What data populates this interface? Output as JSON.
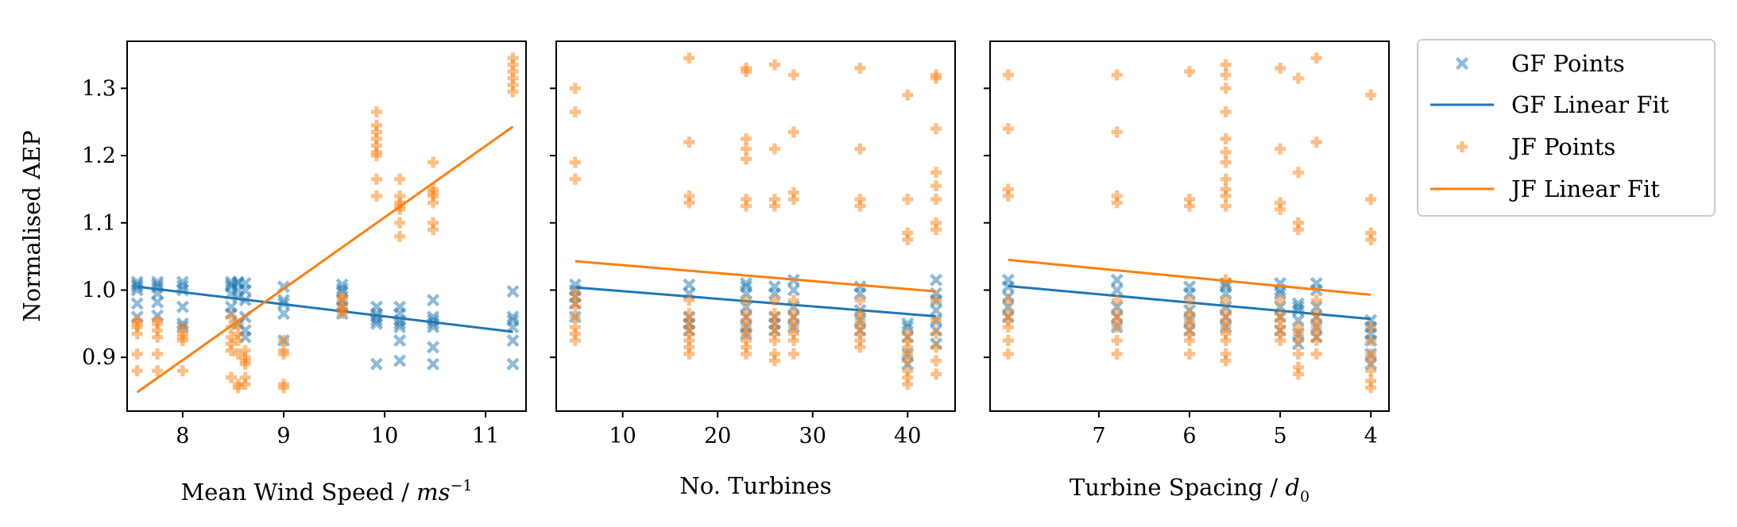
{
  "colors": {
    "gf": "#1f77b4",
    "jf": "#ff7f0e"
  },
  "legend": [
    {
      "label": "GF Points",
      "kind": "points",
      "series": "gf",
      "marker": "x"
    },
    {
      "label": "GF Linear Fit",
      "kind": "line",
      "series": "gf"
    },
    {
      "label": "JF Points",
      "kind": "points",
      "series": "jf",
      "marker": "plus"
    },
    {
      "label": "JF Linear Fit",
      "kind": "line",
      "series": "jf"
    }
  ],
  "chart_data": [
    {
      "type": "scatter",
      "title": "",
      "xlabel": "Mean Wind Speed / ms⁻¹",
      "ylabel": "Normalised AEP",
      "xlim": [
        7.45,
        11.4
      ],
      "ylim": [
        0.82,
        1.37
      ],
      "xticks": [
        8,
        9,
        10,
        11
      ],
      "xtick_labels": [
        "8",
        "9",
        "10",
        "11"
      ],
      "yticks": [
        0.9,
        1.0,
        1.1,
        1.2,
        1.3
      ],
      "ytick_labels": [
        "0.9",
        "1.0",
        "1.1",
        "1.2",
        "1.3"
      ],
      "series": [
        {
          "name": "GF Points",
          "marker": "x",
          "x": [
            7.55,
            7.55,
            7.55,
            7.55,
            7.55,
            7.55,
            7.75,
            7.75,
            7.75,
            7.75,
            7.75,
            7.75,
            8.0,
            8.0,
            8.0,
            8.0,
            8.0,
            8.0,
            8.48,
            8.48,
            8.48,
            8.48,
            8.48,
            8.48,
            8.55,
            8.55,
            8.55,
            8.55,
            8.55,
            8.62,
            8.62,
            8.62,
            8.62,
            8.62,
            8.62,
            9.0,
            9.0,
            9.0,
            9.0,
            9.0,
            9.58,
            9.58,
            9.58,
            9.58,
            9.58,
            9.58,
            9.92,
            9.92,
            9.92,
            9.92,
            9.92,
            9.92,
            10.15,
            10.15,
            10.15,
            10.15,
            10.15,
            10.15,
            10.15,
            10.48,
            10.48,
            10.48,
            10.48,
            10.48,
            10.48,
            10.48,
            11.27,
            11.27,
            11.27,
            11.27,
            11.27,
            11.27
          ],
          "y": [
            1.012,
            1.008,
            1.005,
            1.0,
            0.98,
            0.96,
            1.012,
            1.008,
            1.004,
            0.995,
            0.982,
            0.962,
            1.012,
            1.006,
            1.0,
            0.975,
            0.95,
            0.945,
            1.012,
            1.008,
            1.005,
            0.995,
            0.975,
            0.965,
            1.012,
            1.01,
            1.0,
            0.99,
            0.95,
            1.01,
            1.0,
            0.985,
            0.96,
            0.94,
            0.93,
            1.005,
            0.985,
            0.98,
            0.965,
            0.925,
            1.008,
            1.002,
            0.998,
            0.985,
            0.975,
            0.965,
            0.975,
            0.965,
            0.96,
            0.955,
            0.95,
            0.89,
            0.975,
            0.965,
            0.955,
            0.95,
            0.945,
            0.925,
            0.895,
            0.985,
            0.96,
            0.955,
            0.95,
            0.945,
            0.915,
            0.89,
            0.998,
            0.96,
            0.955,
            0.945,
            0.925,
            0.89
          ]
        },
        {
          "name": "GF Linear Fit",
          "type": "line",
          "x": [
            7.55,
            11.27
          ],
          "y": [
            1.005,
            0.938
          ]
        },
        {
          "name": "JF Points",
          "marker": "plus",
          "x": [
            7.55,
            7.55,
            7.55,
            7.55,
            7.55,
            7.55,
            7.75,
            7.75,
            7.75,
            7.75,
            7.75,
            7.75,
            8.0,
            8.0,
            8.0,
            8.0,
            8.0,
            8.48,
            8.48,
            8.48,
            8.48,
            8.48,
            8.48,
            8.55,
            8.55,
            8.55,
            8.55,
            8.55,
            8.55,
            8.62,
            8.62,
            8.62,
            8.62,
            8.62,
            8.62,
            9.0,
            9.0,
            9.0,
            9.0,
            9.0,
            9.58,
            9.58,
            9.58,
            9.58,
            9.58,
            9.92,
            9.92,
            9.92,
            9.92,
            9.92,
            9.92,
            9.92,
            9.92,
            9.92,
            10.15,
            10.15,
            10.15,
            10.15,
            10.15,
            10.15,
            10.15,
            10.48,
            10.48,
            10.48,
            10.48,
            10.48,
            10.48,
            10.48,
            11.27,
            11.27,
            11.27,
            11.27,
            11.27,
            11.27
          ],
          "y": [
            0.955,
            0.945,
            0.935,
            0.905,
            0.88,
            0.95,
            0.955,
            0.95,
            0.94,
            0.93,
            0.905,
            0.88,
            0.945,
            0.935,
            0.93,
            0.925,
            0.88,
            0.96,
            0.945,
            0.93,
            0.92,
            0.91,
            0.87,
            0.95,
            0.935,
            0.925,
            0.905,
            0.86,
            0.855,
            0.91,
            0.9,
            0.895,
            0.89,
            0.87,
            0.86,
            0.925,
            0.91,
            0.905,
            0.86,
            0.855,
            0.99,
            0.985,
            0.975,
            0.97,
            0.965,
            1.265,
            1.245,
            1.235,
            1.225,
            1.215,
            1.205,
            1.2,
            1.165,
            1.14,
            1.165,
            1.14,
            1.13,
            1.125,
            1.12,
            1.1,
            1.08,
            1.19,
            1.15,
            1.145,
            1.14,
            1.13,
            1.1,
            1.09,
            1.345,
            1.335,
            1.325,
            1.315,
            1.305,
            1.295
          ]
        },
        {
          "name": "JF Linear Fit",
          "type": "line",
          "x": [
            7.55,
            11.27
          ],
          "y": [
            0.848,
            1.243
          ]
        }
      ]
    },
    {
      "type": "scatter",
      "title": "",
      "xlabel": "No. Turbines",
      "ylabel": "",
      "xlim": [
        3.0,
        45.0
      ],
      "ylim": [
        0.82,
        1.37
      ],
      "xticks": [
        10,
        20,
        30,
        40
      ],
      "xtick_labels": [
        "10",
        "20",
        "30",
        "40"
      ],
      "yticks": [
        0.9,
        1.0,
        1.1,
        1.2,
        1.3
      ],
      "ytick_labels": [],
      "series": [
        {
          "name": "GF Points",
          "marker": "x",
          "x": [
            5,
            5,
            5,
            5,
            5,
            17,
            17,
            17,
            17,
            17,
            23,
            23,
            23,
            23,
            23,
            23,
            23,
            26,
            26,
            26,
            26,
            26,
            28,
            28,
            28,
            28,
            28,
            35,
            35,
            35,
            35,
            35,
            40,
            40,
            40,
            40,
            40,
            43,
            43,
            43,
            43,
            43,
            43,
            43
          ],
          "y": [
            1.008,
            1.0,
            0.99,
            0.98,
            0.96,
            1.008,
            0.995,
            0.96,
            0.95,
            0.94,
            1.01,
            1.005,
            0.995,
            0.975,
            0.96,
            0.945,
            0.935,
            1.005,
            0.995,
            0.96,
            0.95,
            0.94,
            1.015,
            1.0,
            0.975,
            0.96,
            0.945,
            1.005,
            0.995,
            0.97,
            0.955,
            0.94,
            0.95,
            0.945,
            0.93,
            0.905,
            0.89,
            1.015,
            0.995,
            0.985,
            0.97,
            0.955,
            0.94,
            0.92
          ]
        },
        {
          "name": "GF Linear Fit",
          "type": "line",
          "x": [
            5,
            43
          ],
          "y": [
            1.004,
            0.961
          ]
        },
        {
          "name": "JF Points",
          "marker": "plus",
          "x": [
            5,
            5,
            5,
            5,
            5,
            5,
            5,
            5,
            5,
            5,
            5,
            17,
            17,
            17,
            17,
            17,
            17,
            17,
            17,
            17,
            17,
            17,
            17,
            23,
            23,
            23,
            23,
            23,
            23,
            23,
            23,
            23,
            23,
            23,
            23,
            23,
            23,
            23,
            26,
            26,
            26,
            26,
            26,
            26,
            26,
            26,
            26,
            26,
            26,
            26,
            28,
            28,
            28,
            28,
            28,
            28,
            28,
            28,
            28,
            28,
            28,
            35,
            35,
            35,
            35,
            35,
            35,
            35,
            35,
            35,
            35,
            35,
            40,
            40,
            40,
            40,
            40,
            40,
            40,
            40,
            40,
            40,
            40,
            40,
            43,
            43,
            43,
            43,
            43,
            43,
            43,
            43,
            43,
            43,
            43,
            43,
            43,
            43
          ],
          "y": [
            1.3,
            1.265,
            1.19,
            1.165,
            0.995,
            0.985,
            0.975,
            0.96,
            0.945,
            0.935,
            0.925,
            1.345,
            1.22,
            1.14,
            1.13,
            0.985,
            0.965,
            0.955,
            0.945,
            0.935,
            0.925,
            0.915,
            0.905,
            1.33,
            1.325,
            1.225,
            1.21,
            1.195,
            1.135,
            1.125,
            0.985,
            0.965,
            0.955,
            0.945,
            0.935,
            0.925,
            0.915,
            0.905,
            1.335,
            1.21,
            1.135,
            1.125,
            0.985,
            0.965,
            0.955,
            0.945,
            0.935,
            0.925,
            0.905,
            0.895,
            1.32,
            1.235,
            1.145,
            1.135,
            0.985,
            0.965,
            0.955,
            0.945,
            0.935,
            0.925,
            0.905,
            1.33,
            1.21,
            1.135,
            1.125,
            0.985,
            0.965,
            0.955,
            0.945,
            0.935,
            0.925,
            0.915,
            1.29,
            1.135,
            1.085,
            1.075,
            0.935,
            0.925,
            0.915,
            0.905,
            0.895,
            0.88,
            0.87,
            0.86,
            1.32,
            1.315,
            1.24,
            1.175,
            1.155,
            1.135,
            1.1,
            1.09,
            0.985,
            0.955,
            0.935,
            0.915,
            0.895,
            0.875
          ]
        },
        {
          "name": "JF Linear Fit",
          "type": "line",
          "x": [
            5,
            43
          ],
          "y": [
            1.043,
            0.998
          ]
        }
      ]
    },
    {
      "type": "scatter",
      "title": "",
      "xlabel": "Turbine Spacing / d₀",
      "ylabel": "",
      "xlim": [
        8.2,
        3.8
      ],
      "ylim": [
        0.82,
        1.37
      ],
      "xticks": [
        7,
        6,
        5,
        4
      ],
      "xtick_labels": [
        "7",
        "6",
        "5",
        "4"
      ],
      "yticks": [
        0.9,
        1.0,
        1.1,
        1.2,
        1.3
      ],
      "ytick_labels": [],
      "series": [
        {
          "name": "GF Points",
          "marker": "x",
          "x": [
            8.0,
            8.0,
            8.0,
            8.0,
            8.0,
            6.8,
            6.8,
            6.8,
            6.8,
            6.8,
            6.0,
            6.0,
            6.0,
            6.0,
            6.0,
            5.6,
            5.6,
            5.6,
            5.6,
            5.6,
            5.6,
            5.0,
            5.0,
            5.0,
            5.0,
            5.0,
            5.0,
            4.8,
            4.8,
            4.8,
            4.8,
            4.8,
            4.8,
            4.6,
            4.6,
            4.6,
            4.6,
            4.6,
            4.6,
            4.0,
            4.0,
            4.0,
            4.0,
            4.0,
            4.0
          ],
          "y": [
            1.015,
            1.005,
            0.99,
            0.975,
            0.96,
            1.015,
            1.0,
            0.975,
            0.96,
            0.945,
            1.005,
            0.995,
            0.97,
            0.955,
            0.94,
            1.01,
            1.005,
            0.995,
            0.975,
            0.96,
            0.945,
            1.01,
            1.0,
            0.995,
            0.975,
            0.96,
            0.94,
            0.98,
            0.975,
            0.97,
            0.955,
            0.935,
            0.92,
            1.01,
            1.0,
            0.975,
            0.96,
            0.945,
            0.93,
            0.955,
            0.945,
            0.935,
            0.925,
            0.905,
            0.89
          ]
        },
        {
          "name": "GF Linear Fit",
          "type": "line",
          "x": [
            8.0,
            4.0
          ],
          "y": [
            1.006,
            0.957
          ]
        },
        {
          "name": "JF Points",
          "marker": "plus",
          "x": [
            8.0,
            8.0,
            8.0,
            8.0,
            8.0,
            8.0,
            8.0,
            8.0,
            8.0,
            8.0,
            6.8,
            6.8,
            6.8,
            6.8,
            6.8,
            6.8,
            6.8,
            6.8,
            6.8,
            6.8,
            6.0,
            6.0,
            6.0,
            6.0,
            6.0,
            6.0,
            6.0,
            6.0,
            6.0,
            6.0,
            5.6,
            5.6,
            5.6,
            5.6,
            5.6,
            5.6,
            5.6,
            5.6,
            5.6,
            5.6,
            5.6,
            5.6,
            5.6,
            5.6,
            5.6,
            5.6,
            5.6,
            5.6,
            5.6,
            5.6,
            5.0,
            5.0,
            5.0,
            5.0,
            5.0,
            5.0,
            5.0,
            5.0,
            5.0,
            5.0,
            4.8,
            4.8,
            4.8,
            4.8,
            4.8,
            4.8,
            4.8,
            4.8,
            4.8,
            4.8,
            4.6,
            4.6,
            4.6,
            4.6,
            4.6,
            4.6,
            4.6,
            4.6,
            4.6,
            4.0,
            4.0,
            4.0,
            4.0,
            4.0,
            4.0,
            4.0,
            4.0,
            4.0,
            4.0,
            4.0
          ],
          "y": [
            1.32,
            1.24,
            1.15,
            1.14,
            0.985,
            0.965,
            0.955,
            0.945,
            0.925,
            0.905,
            1.32,
            1.235,
            1.14,
            1.13,
            0.985,
            0.965,
            0.955,
            0.945,
            0.925,
            0.905,
            1.325,
            1.135,
            1.125,
            0.985,
            0.965,
            0.955,
            0.945,
            0.935,
            0.925,
            0.905,
            1.335,
            1.32,
            1.3,
            1.265,
            1.225,
            1.205,
            1.19,
            1.165,
            1.15,
            1.14,
            1.125,
            1.015,
            0.985,
            0.965,
            0.955,
            0.945,
            0.935,
            0.925,
            0.905,
            0.895,
            1.33,
            1.21,
            1.13,
            1.12,
            0.985,
            0.965,
            0.955,
            0.945,
            0.935,
            0.925,
            1.315,
            1.175,
            1.1,
            1.09,
            0.945,
            0.935,
            0.925,
            0.905,
            0.885,
            0.875,
            1.345,
            1.22,
            0.985,
            0.965,
            0.955,
            0.945,
            0.935,
            0.925,
            0.905,
            1.29,
            1.135,
            1.085,
            1.075,
            0.945,
            0.925,
            0.905,
            0.895,
            0.88,
            0.865,
            0.855
          ]
        },
        {
          "name": "JF Linear Fit",
          "type": "line",
          "x": [
            8.0,
            4.0
          ],
          "y": [
            1.045,
            0.993
          ]
        }
      ]
    }
  ]
}
